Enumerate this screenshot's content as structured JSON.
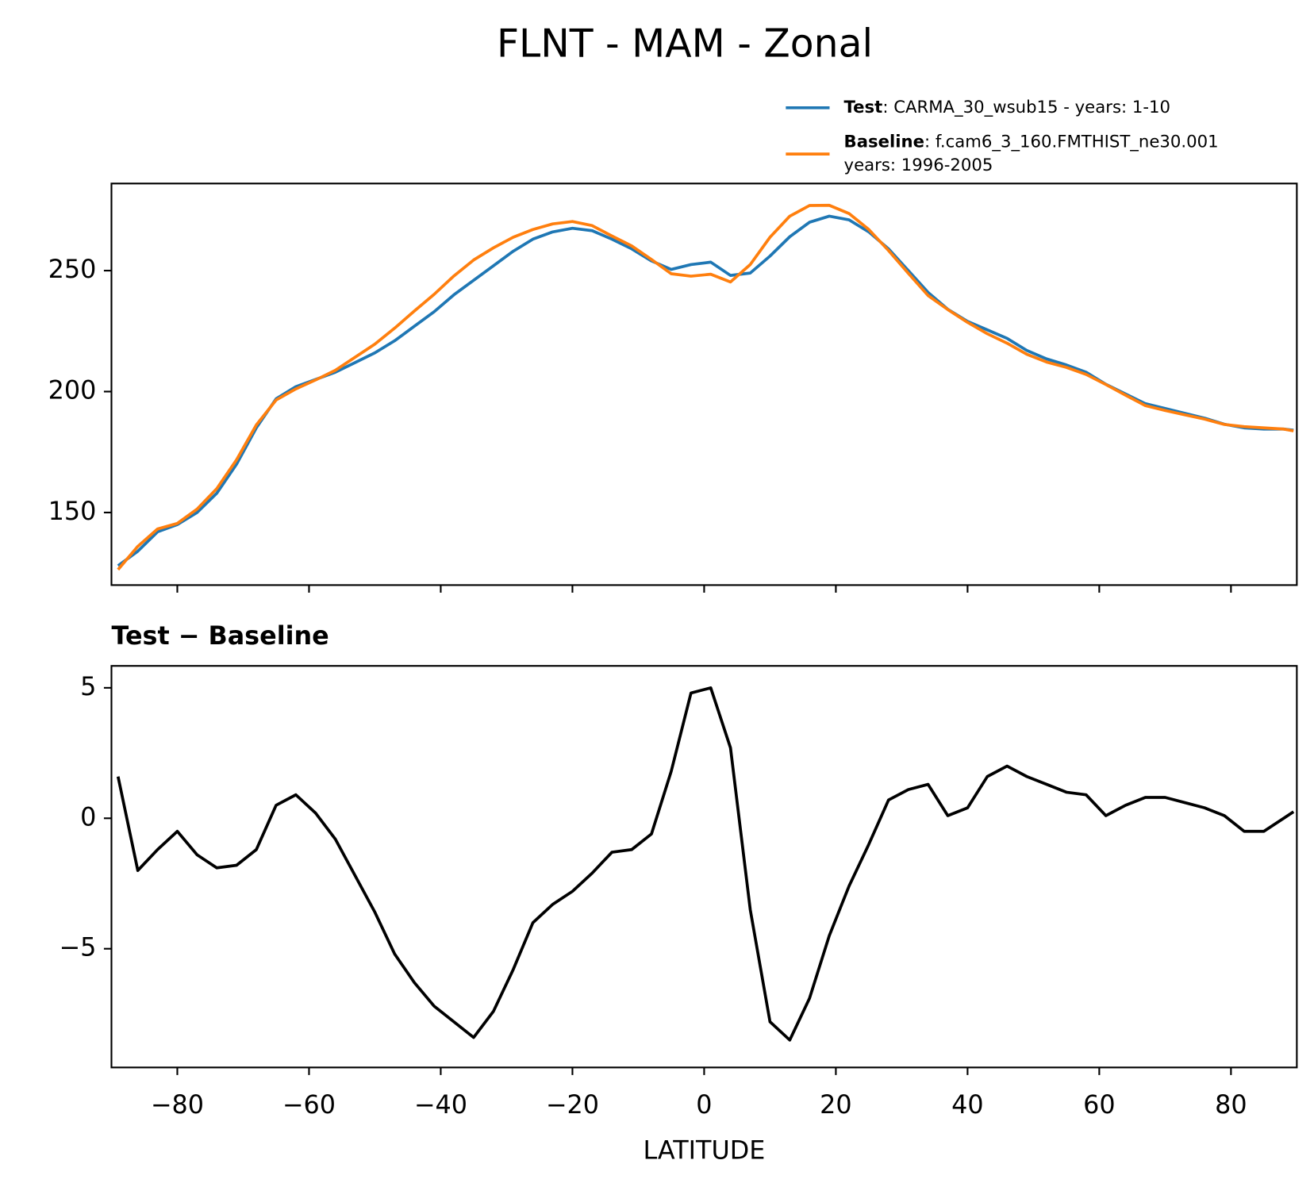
{
  "chart_data": [
    {
      "type": "line",
      "title": "FLNT - MAM - Zonal",
      "x": [
        -89,
        -86,
        -83,
        -80,
        -77,
        -74,
        -71,
        -68,
        -65,
        -62,
        -59,
        -56,
        -53,
        -50,
        -47,
        -44,
        -41,
        -38,
        -35,
        -32,
        -29,
        -26,
        -23,
        -20,
        -17,
        -14,
        -11,
        -8,
        -5,
        -2,
        1,
        4,
        7,
        10,
        13,
        16,
        19,
        22,
        25,
        28,
        31,
        34,
        37,
        40,
        43,
        46,
        49,
        52,
        55,
        58,
        61,
        64,
        67,
        70,
        73,
        76,
        79,
        82,
        85,
        88,
        89.5
      ],
      "series": [
        {
          "name": "Test",
          "description": [
            ": CARMA_30_wsub15 - years: 1-10"
          ],
          "color": "#1f77b4",
          "values": [
            128,
            134,
            142,
            145,
            150,
            158,
            170,
            185,
            197,
            202,
            205,
            208,
            212,
            216,
            221,
            227,
            233,
            240,
            246,
            252,
            258,
            263,
            266,
            267.5,
            266.5,
            263,
            259,
            254,
            250.5,
            252.5,
            253.5,
            248,
            249,
            256,
            264,
            270,
            272.5,
            271,
            266,
            259,
            250,
            241,
            234,
            229,
            225.5,
            222,
            217,
            213.5,
            211,
            208,
            203,
            199,
            195,
            193,
            191,
            189,
            186.5,
            185,
            184.5,
            184.5,
            184
          ]
        },
        {
          "name": "Baseline",
          "description": [
            ": f.cam6_3_160.FMTHIST_ne30.001",
            "years: 1996-2005"
          ],
          "color": "#ff7f0e",
          "values": [
            126.4,
            136,
            143.2,
            145.5,
            151.4,
            159.9,
            171.8,
            186.2,
            196.5,
            201.1,
            204.8,
            208.8,
            214.2,
            219.6,
            226.2,
            233.3,
            240.2,
            247.8,
            254.4,
            259.4,
            263.8,
            267,
            269.3,
            270.3,
            268.6,
            264.3,
            260.2,
            254.6,
            248.7,
            247.7,
            248.5,
            245.3,
            252.5,
            263.8,
            272.5,
            276.9,
            277,
            273.6,
            267,
            258.3,
            248.9,
            239.7,
            233.9,
            228.6,
            223.9,
            220,
            215.4,
            212.2,
            210,
            207.1,
            202.9,
            198.5,
            194.2,
            192.2,
            190.4,
            188.6,
            186.4,
            185.5,
            185,
            184.5,
            183.75
          ]
        }
      ],
      "xlim": [
        -90,
        90
      ],
      "xticks": [
        {
          "value": -80,
          "label": "−80"
        },
        {
          "value": -60,
          "label": "−60"
        },
        {
          "value": -40,
          "label": "−40"
        },
        {
          "value": -20,
          "label": "−20"
        },
        0,
        20,
        40,
        60,
        80
      ],
      "ylim": [
        120,
        286
      ],
      "yticks": [
        150,
        200,
        250
      ]
    },
    {
      "type": "line",
      "title": "Test − Baseline",
      "xlabel": "LATITUDE",
      "x": [
        -89,
        -86,
        -83,
        -80,
        -77,
        -74,
        -71,
        -68,
        -65,
        -62,
        -59,
        -56,
        -53,
        -50,
        -47,
        -44,
        -41,
        -38,
        -35,
        -32,
        -29,
        -26,
        -23,
        -20,
        -17,
        -14,
        -11,
        -8,
        -5,
        -2,
        1,
        4,
        7,
        10,
        13,
        16,
        19,
        22,
        25,
        28,
        31,
        34,
        37,
        40,
        43,
        46,
        49,
        52,
        55,
        58,
        61,
        64,
        67,
        70,
        73,
        76,
        79,
        82,
        85,
        88,
        89.5
      ],
      "series": [
        {
          "color": "#000000",
          "values": [
            1.6,
            -2.0,
            -1.2,
            -0.5,
            -1.4,
            -1.9,
            -1.8,
            -1.2,
            0.5,
            0.9,
            0.2,
            -0.8,
            -2.2,
            -3.6,
            -5.2,
            -6.3,
            -7.2,
            -7.8,
            -8.4,
            -7.4,
            -5.8,
            -4.0,
            -3.3,
            -2.8,
            -2.1,
            -1.3,
            -1.2,
            -0.6,
            1.8,
            4.8,
            5.0,
            2.7,
            -3.5,
            -7.8,
            -8.5,
            -6.9,
            -4.5,
            -2.6,
            -1.0,
            0.7,
            1.1,
            1.3,
            0.1,
            0.4,
            1.6,
            2.0,
            1.6,
            1.3,
            1.0,
            0.9,
            0.1,
            0.5,
            0.8,
            0.8,
            0.6,
            0.4,
            0.1,
            -0.5,
            -0.5,
            0.0,
            0.25
          ]
        }
      ],
      "xlim": [
        -90,
        90
      ],
      "xticks": [
        {
          "value": -80,
          "label": "−80"
        },
        {
          "value": -60,
          "label": "−60"
        },
        {
          "value": -40,
          "label": "−40"
        },
        {
          "value": -20,
          "label": "−20"
        },
        0,
        20,
        40,
        60,
        80
      ],
      "ylim": [
        -9.55,
        5.84
      ],
      "yticks": [
        {
          "value": -5,
          "label": "−5"
        },
        0,
        5
      ]
    }
  ]
}
